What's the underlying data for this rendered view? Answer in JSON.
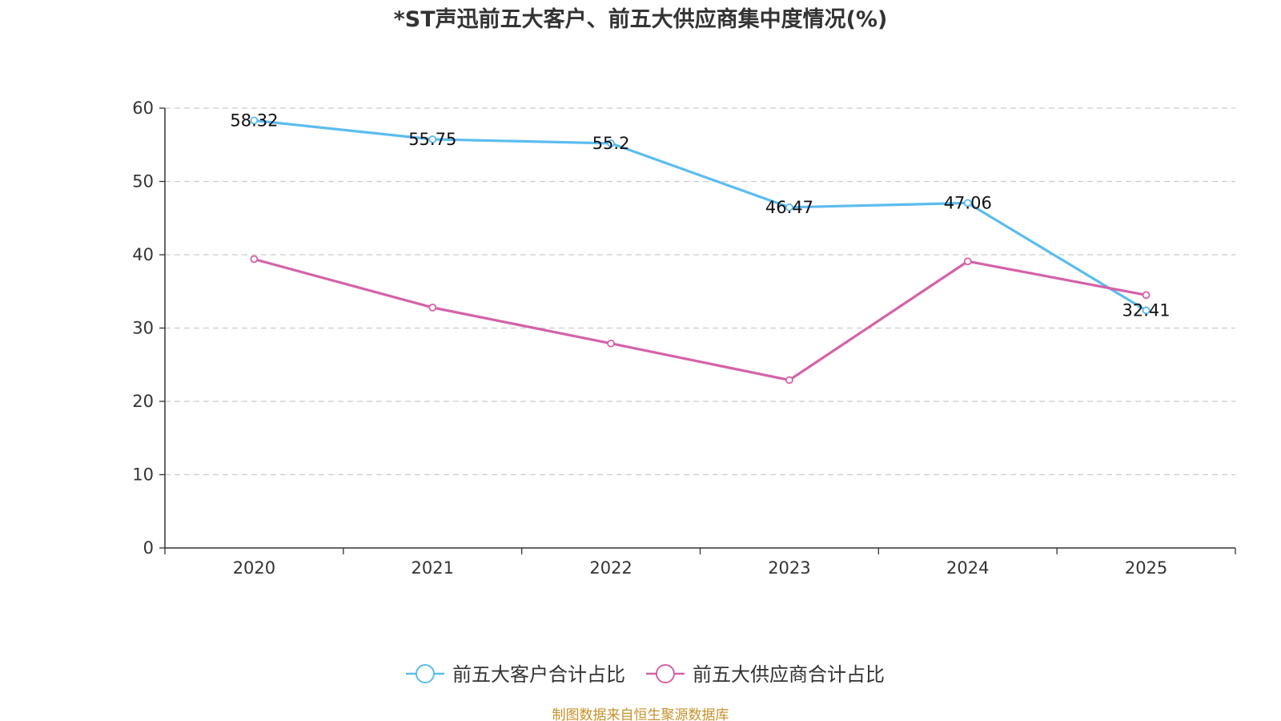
{
  "chart_data": {
    "type": "line",
    "title": "*ST声迅前五大客户、前五大供应商集中度情况(%)",
    "categories": [
      "2020",
      "2021",
      "2022",
      "2023",
      "2024",
      "2025"
    ],
    "ylim": [
      0,
      60
    ],
    "yticks": [
      "0",
      "10",
      "20",
      "30",
      "40",
      "50",
      "60"
    ],
    "grid": true,
    "legend_position": "bottom-center",
    "series": [
      {
        "name": "前五大客户合计占比",
        "color": "#5bbcf0",
        "values": [
          58.32,
          55.75,
          55.2,
          46.47,
          47.06,
          32.41
        ],
        "labels": [
          "58.32",
          "55.75",
          "55.2",
          "46.47",
          "47.06",
          "32.41"
        ]
      },
      {
        "name": "前五大供应商合计占比",
        "color": "#d462a8",
        "values": [
          39.4,
          32.8,
          27.9,
          22.9,
          39.1,
          34.5
        ]
      }
    ]
  },
  "source": {
    "text": "制图数据来自恒生聚源数据库",
    "color": "#c8922a"
  }
}
